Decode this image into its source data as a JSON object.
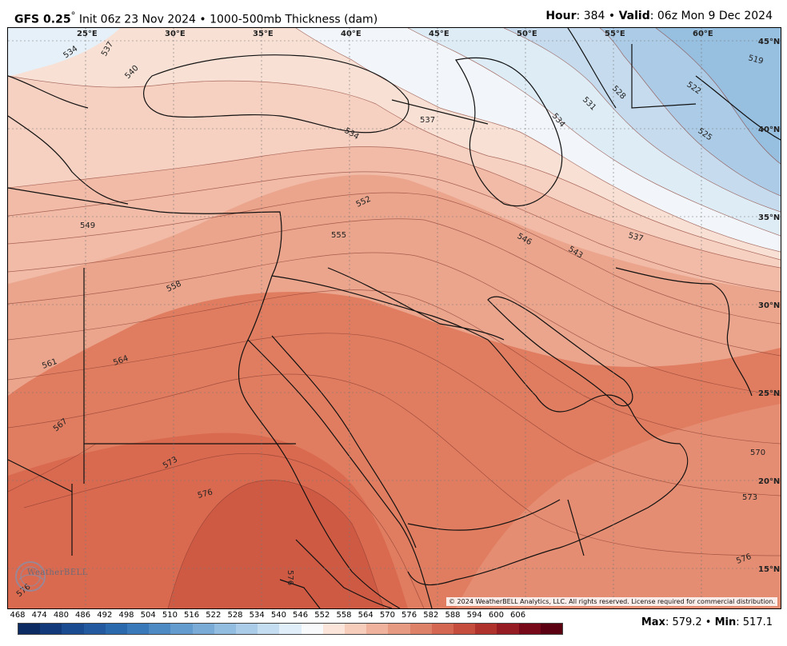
{
  "header": {
    "model": "GFS 0.25",
    "degree": "°",
    "init": " Init 06z 23 Nov 2024 • 1000-500mb Thickness (dam)",
    "hour_label": "Hour",
    "hour_value": ": 384 • ",
    "valid_label": "Valid",
    "valid_value": ": 06z Mon 9 Dec 2024"
  },
  "map": {
    "longitudes": [
      "25°E",
      "30°E",
      "35°E",
      "40°E",
      "45°E",
      "50°E",
      "55°E",
      "60°E"
    ],
    "latitudes": [
      "45°N",
      "40°N",
      "35°N",
      "30°N",
      "25°N",
      "20°N",
      "15°N"
    ],
    "contour_labels": [
      "534",
      "537",
      "540",
      "534",
      "537",
      "531",
      "528",
      "534",
      "522",
      "519",
      "525",
      "552",
      "555",
      "549",
      "546",
      "543",
      "537",
      "558",
      "561",
      "564",
      "567",
      "573",
      "576",
      "570",
      "573",
      "576",
      "576",
      "576"
    ],
    "copyright": "© 2024 WeatherBELL Analytics, LLC. All rights reserved. License required for commercial distribution.",
    "logo": "WeatherBELL",
    "logo_icon": "weatherbell-logo-icon"
  },
  "colorbar": {
    "ticks": [
      "468",
      "474",
      "480",
      "486",
      "492",
      "498",
      "504",
      "510",
      "516",
      "522",
      "528",
      "534",
      "540",
      "546",
      "552",
      "558",
      "564",
      "570",
      "576",
      "582",
      "588",
      "594",
      "600",
      "606"
    ],
    "colors": [
      "#0d2b63",
      "#123a7a",
      "#1a4a8f",
      "#22599f",
      "#2b69ad",
      "#3a79b9",
      "#4d8ac4",
      "#639bce",
      "#7aabd7",
      "#92bce0",
      "#abcce8",
      "#c4ddf0",
      "#dfeef8",
      "#f7f9fb",
      "#fbe4da",
      "#f6cdbb",
      "#efb39d",
      "#e79a82",
      "#de8169",
      "#d36752",
      "#c44d3e",
      "#b0322d",
      "#951c22",
      "#77081a",
      "#5a0010"
    ]
  },
  "stats": {
    "max_label": "Max",
    "max_value": ": 579.2 • ",
    "min_label": "Min",
    "min_value": ": 517.1"
  }
}
